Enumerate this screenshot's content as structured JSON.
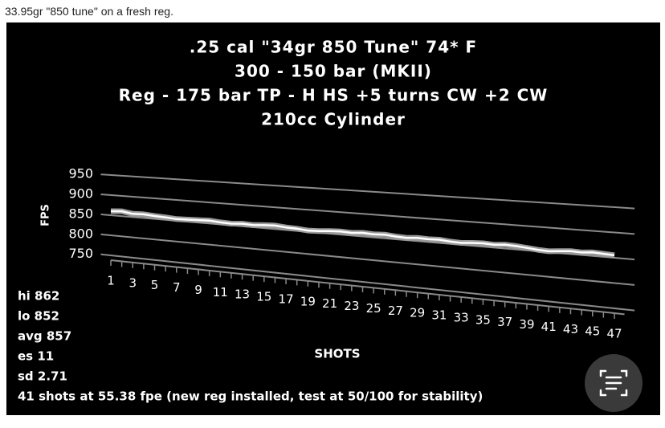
{
  "post_text": "33.95gr \"850 tune\" on a fresh reg.",
  "chart_data": {
    "type": "line",
    "title_lines": [
      ".25 cal \"34gr 850 Tune\"  74* F",
      "300 - 150 bar (MKII)",
      "Reg - 175 bar     TP - H     HS +5 turns  CW +2  CW",
      "210cc Cylinder"
    ],
    "y_label": "FPS",
    "x_label": "SHOTS",
    "categories": [
      "1",
      null,
      "3",
      null,
      "5",
      null,
      "7",
      null,
      "9",
      null,
      "11",
      null,
      "13",
      null,
      "15",
      null,
      "17",
      null,
      "19",
      null,
      "21",
      null,
      "23",
      null,
      "25",
      null,
      "27",
      null,
      "29",
      null,
      "31",
      null,
      "33",
      null,
      "35",
      null,
      "37",
      null,
      "39",
      null,
      "41",
      null,
      "43",
      null,
      "45",
      null,
      "47"
    ],
    "series": [
      {
        "name": "FPS",
        "color": "#ffffff",
        "values": [
          860,
          862,
          858,
          859,
          857,
          856,
          854,
          855,
          856,
          857,
          855,
          854,
          856,
          855,
          857,
          858,
          856,
          855,
          853,
          854,
          856,
          857,
          856,
          858,
          857,
          858,
          856,
          855,
          857,
          856,
          857,
          855,
          854,
          856,
          857,
          856,
          858,
          857,
          855,
          853,
          852,
          854,
          856,
          855,
          857,
          856,
          855
        ]
      }
    ],
    "ylim": [
      750,
      950
    ],
    "yticks": [
      750,
      800,
      850,
      900,
      950
    ],
    "grid": true,
    "annotations": [
      "hi 862",
      "lo 852",
      "avg 857",
      "es 11",
      "sd 2.71",
      "41 shots at 55.38 fpe (new reg installed, test at 50/100 for stability)"
    ]
  }
}
